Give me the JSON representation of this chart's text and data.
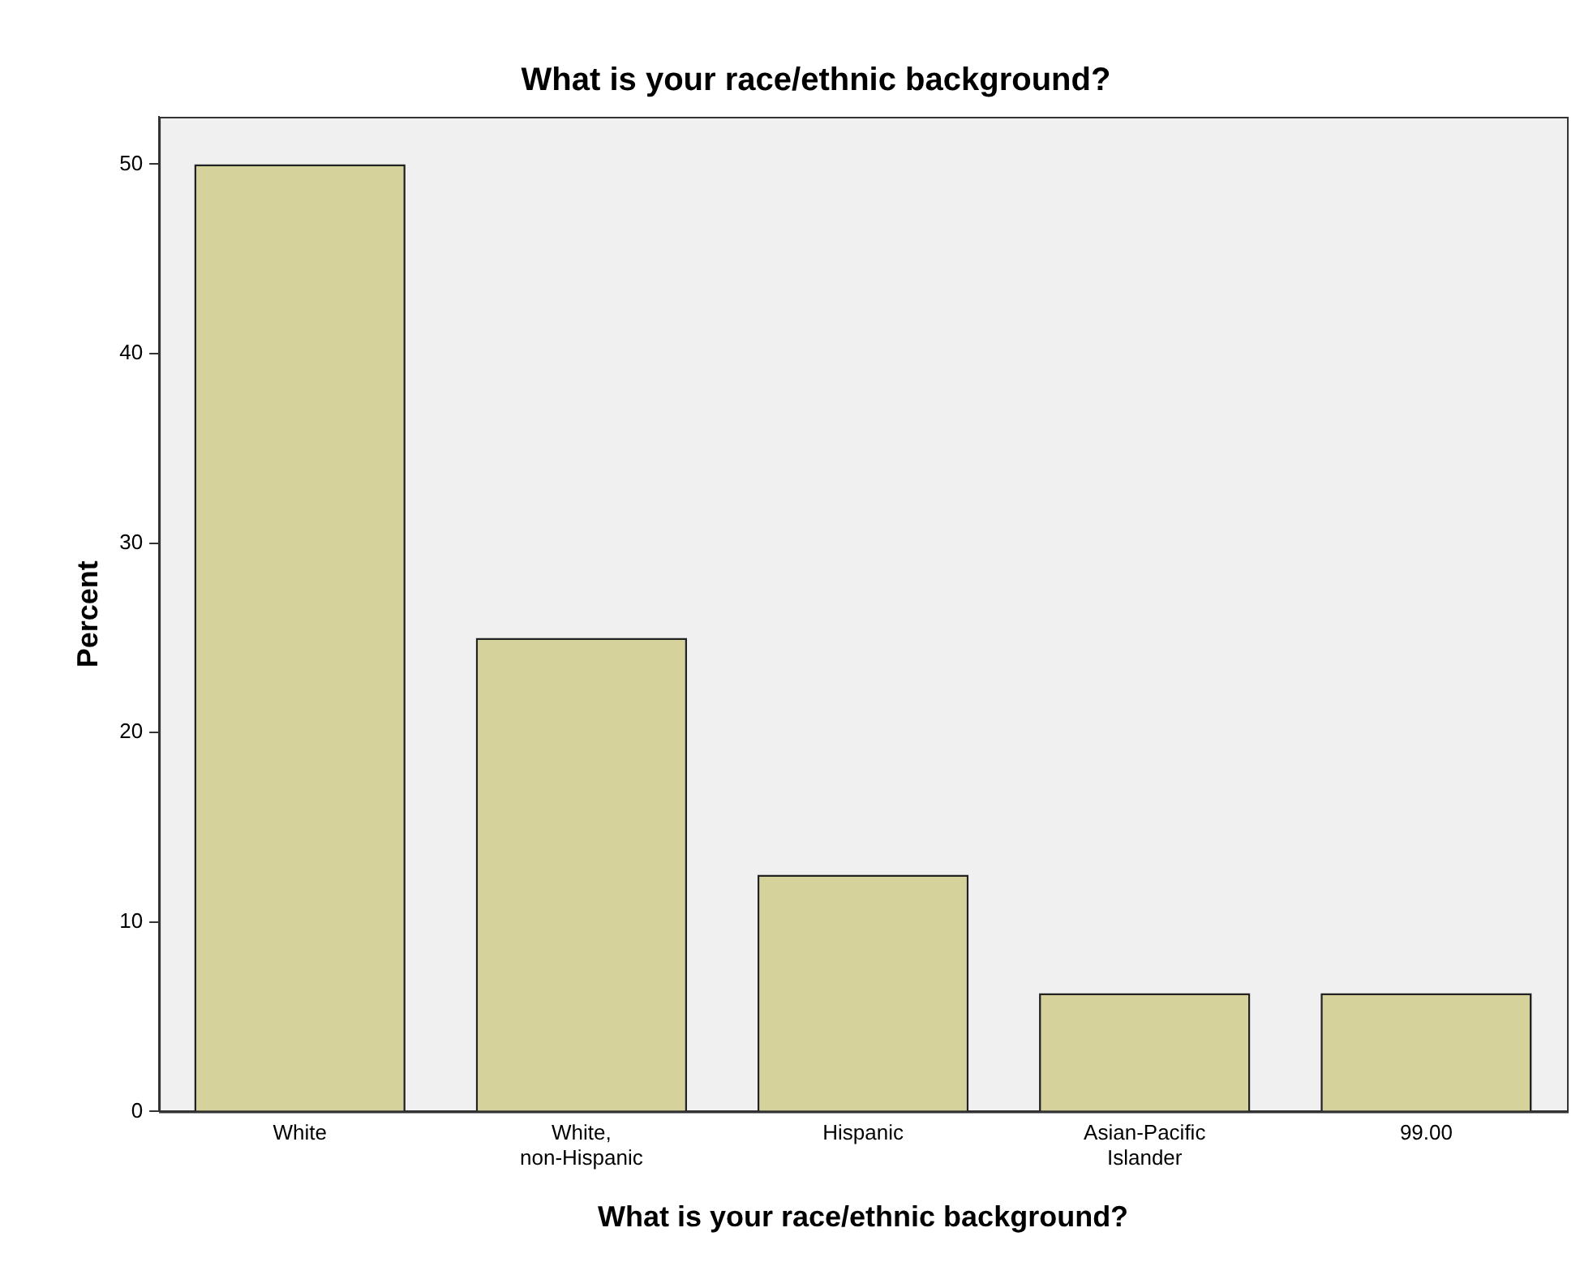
{
  "chart_data": {
    "type": "bar",
    "title": "What is your race/ethnic background?",
    "xlabel": "What is your race/ethnic background?",
    "ylabel": "Percent",
    "categories": [
      "White",
      "White, non-Hispanic",
      "Hispanic",
      "Asian-Pacific Islander",
      "99.00"
    ],
    "values": [
      50,
      25,
      12.5,
      6.25,
      6.25
    ],
    "color": "#d6d29c",
    "ylim": [
      0,
      52.5
    ],
    "yticks": [
      0,
      10,
      20,
      30,
      40,
      50
    ],
    "grid": false,
    "legend": false
  }
}
